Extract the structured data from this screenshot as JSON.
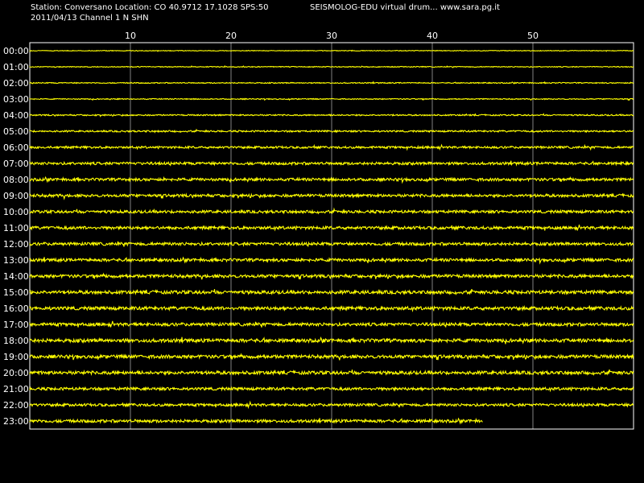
{
  "header": {
    "station_line": "Station: Conversano Location: CO 40.9712 17.1028 SPS:50",
    "date_line": "2011/04/13  Channel 1 N SHN",
    "brand_line": "SEISMOLOG-EDU virtual drum... www.sara.pg.it"
  },
  "colors": {
    "background": "#000000",
    "trace": "#ffff00",
    "grid": "#ffffff",
    "text": "#ffffff"
  },
  "chart_data": {
    "type": "line",
    "title": "",
    "xlabel": "",
    "ylabel": "",
    "x_ticks": [
      "10",
      "20",
      "30",
      "40",
      "50"
    ],
    "x_tick_values": [
      10,
      20,
      30,
      40,
      50
    ],
    "xlim": [
      0,
      60
    ],
    "grid": true,
    "rows": [
      {
        "label": "00:00",
        "noise_level": 0.4,
        "end_minute": 60
      },
      {
        "label": "01:00",
        "noise_level": 0.5,
        "end_minute": 60
      },
      {
        "label": "02:00",
        "noise_level": 0.6,
        "end_minute": 60
      },
      {
        "label": "03:00",
        "noise_level": 0.6,
        "end_minute": 60
      },
      {
        "label": "04:00",
        "noise_level": 0.8,
        "end_minute": 60
      },
      {
        "label": "05:00",
        "noise_level": 1.0,
        "end_minute": 60
      },
      {
        "label": "06:00",
        "noise_level": 1.3,
        "end_minute": 60
      },
      {
        "label": "07:00",
        "noise_level": 1.6,
        "end_minute": 60
      },
      {
        "label": "08:00",
        "noise_level": 1.7,
        "end_minute": 60
      },
      {
        "label": "09:00",
        "noise_level": 1.7,
        "end_minute": 60
      },
      {
        "label": "10:00",
        "noise_level": 1.7,
        "end_minute": 60
      },
      {
        "label": "11:00",
        "noise_level": 1.8,
        "end_minute": 60
      },
      {
        "label": "12:00",
        "noise_level": 1.8,
        "end_minute": 60
      },
      {
        "label": "13:00",
        "noise_level": 1.8,
        "end_minute": 60
      },
      {
        "label": "14:00",
        "noise_level": 1.9,
        "end_minute": 60
      },
      {
        "label": "15:00",
        "noise_level": 2.0,
        "end_minute": 60
      },
      {
        "label": "16:00",
        "noise_level": 2.0,
        "end_minute": 60
      },
      {
        "label": "17:00",
        "noise_level": 1.9,
        "end_minute": 60
      },
      {
        "label": "18:00",
        "noise_level": 2.1,
        "end_minute": 60
      },
      {
        "label": "19:00",
        "noise_level": 2.0,
        "end_minute": 60
      },
      {
        "label": "20:00",
        "noise_level": 2.0,
        "end_minute": 60
      },
      {
        "label": "21:00",
        "noise_level": 1.7,
        "end_minute": 60
      },
      {
        "label": "22:00",
        "noise_level": 1.6,
        "end_minute": 60
      },
      {
        "label": "23:00",
        "noise_level": 1.8,
        "end_minute": 45
      }
    ]
  }
}
